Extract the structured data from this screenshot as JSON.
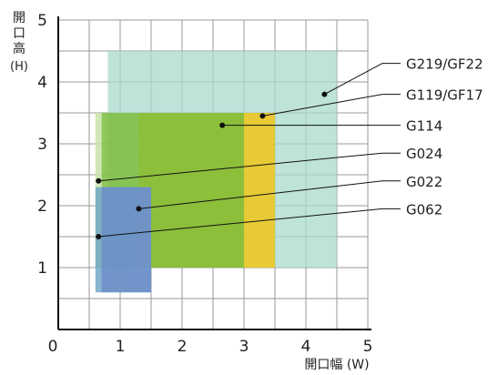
{
  "chart_data": {
    "type": "area",
    "title": "",
    "xlabel": "開口幅 (W)",
    "ylabel_chars": [
      "開",
      "口",
      "高"
    ],
    "ylabel_unit": "(H)",
    "xlim": [
      0,
      5
    ],
    "ylim": [
      0,
      5
    ],
    "x_ticks": [
      "0",
      "1",
      "2",
      "3",
      "4",
      "5"
    ],
    "y_ticks": [
      "1",
      "2",
      "3",
      "4",
      "5"
    ],
    "grid": true,
    "grid_step": 0.5,
    "series": [
      {
        "name": "G219/GF22",
        "color": "#a8d9cc",
        "opacity": 0.75,
        "x_range": [
          0.8,
          4.5
        ],
        "y_range": [
          1.0,
          4.5
        ],
        "marker": [
          4.3,
          3.8
        ]
      },
      {
        "name": "G119/GF17",
        "color": "#f0c419",
        "opacity": 0.85,
        "x_range": [
          1.3,
          3.5
        ],
        "y_range": [
          1.0,
          3.5
        ],
        "marker": [
          3.3,
          3.45
        ]
      },
      {
        "name": "G114",
        "color": "#7dbd3c",
        "opacity": 0.85,
        "x_range": [
          0.7,
          3.0
        ],
        "y_range": [
          1.0,
          3.5
        ],
        "marker": [
          2.65,
          3.3
        ]
      },
      {
        "name": "G024",
        "color": "#c8e3a8",
        "opacity": 0.85,
        "x_range": [
          0.6,
          0.7
        ],
        "y_range": [
          1.0,
          3.5
        ],
        "marker": [
          0.65,
          2.4
        ]
      },
      {
        "name": "G022",
        "color": "#6d8fc9",
        "opacity": 0.85,
        "x_range": [
          0.7,
          1.5
        ],
        "y_range": [
          0.6,
          2.3
        ],
        "marker": [
          1.3,
          1.95
        ]
      },
      {
        "name": "G062",
        "color": "#6aa2c4",
        "opacity": 0.8,
        "x_range": [
          0.6,
          1.5
        ],
        "y_range": [
          0.6,
          2.3
        ],
        "marker": [
          0.65,
          1.5
        ]
      }
    ],
    "labels": [
      {
        "text": "G219/GF22",
        "y": 4.3
      },
      {
        "text": "G119/GF17",
        "y": 3.8
      },
      {
        "text": "G114",
        "y": 3.3
      },
      {
        "text": "G024",
        "y": 2.85
      },
      {
        "text": "G022",
        "y": 2.4
      },
      {
        "text": "G062",
        "y": 1.95
      }
    ]
  }
}
